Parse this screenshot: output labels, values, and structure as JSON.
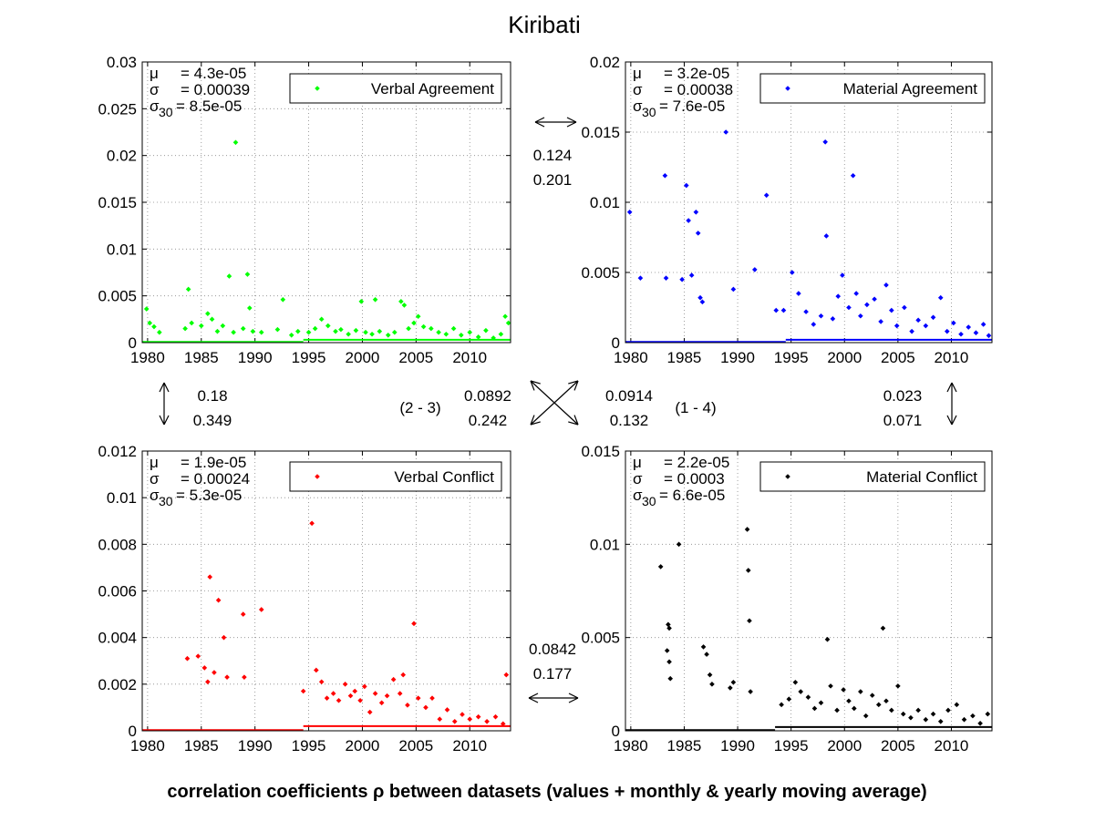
{
  "title": "Kiribati",
  "footer": "correlation coefficients ρ between datasets (values + monthly & yearly moving average)",
  "colors": {
    "verbal_agreement": "#00ff00",
    "material_agreement": "#0000ff",
    "verbal_conflict": "#ff0000",
    "material_conflict": "#000000"
  },
  "chart_data": [
    {
      "type": "scatter",
      "id": "va",
      "legend": "Verbal Agreement",
      "stats": {
        "mu": "= 4.3e-05",
        "sigma": "= 0.00039",
        "sigma30": "= 8.5e-05"
      },
      "xlim": [
        1979.5,
        2013.8
      ],
      "ylim": [
        0,
        0.03
      ],
      "xticks": [
        1980,
        1985,
        1990,
        1995,
        2000,
        2005,
        2010
      ],
      "yticks": [
        0,
        0.005,
        0.01,
        0.015,
        0.02,
        0.025,
        0.03
      ],
      "ytick_labels": [
        "0",
        "0.005",
        "0.01",
        "0.015",
        "0.02",
        "0.025",
        "0.03"
      ],
      "points": [
        [
          1979.9,
          0.0036
        ],
        [
          1980.2,
          0.0021
        ],
        [
          1980.6,
          0.0017
        ],
        [
          1981.1,
          0.0011
        ],
        [
          1983.8,
          0.0057
        ],
        [
          1983.5,
          0.0015
        ],
        [
          1984.1,
          0.0021
        ],
        [
          1985.0,
          0.0018
        ],
        [
          1985.6,
          0.0031
        ],
        [
          1986.0,
          0.0025
        ],
        [
          1986.5,
          0.0012
        ],
        [
          1987.0,
          0.0018
        ],
        [
          1987.6,
          0.0071
        ],
        [
          1988.2,
          0.0214
        ],
        [
          1988.0,
          0.0011
        ],
        [
          1988.9,
          0.0015
        ],
        [
          1989.3,
          0.0073
        ],
        [
          1989.5,
          0.0037
        ],
        [
          1989.8,
          0.0012
        ],
        [
          1990.6,
          0.0011
        ],
        [
          1992.6,
          0.0046
        ],
        [
          1992.1,
          0.0014
        ],
        [
          1993.4,
          0.0008
        ],
        [
          1994.0,
          0.0012
        ],
        [
          1995.0,
          0.0011
        ],
        [
          1995.6,
          0.0015
        ],
        [
          1996.2,
          0.0025
        ],
        [
          1996.8,
          0.0018
        ],
        [
          1997.5,
          0.0012
        ],
        [
          1998.0,
          0.0014
        ],
        [
          1998.7,
          0.0009
        ],
        [
          1999.4,
          0.0013
        ],
        [
          1999.9,
          0.0044
        ],
        [
          2000.3,
          0.0011
        ],
        [
          2000.9,
          0.0009
        ],
        [
          2001.2,
          0.0046
        ],
        [
          2001.6,
          0.0012
        ],
        [
          2002.4,
          0.0008
        ],
        [
          2003.0,
          0.0011
        ],
        [
          2003.6,
          0.0044
        ],
        [
          2003.9,
          0.004
        ],
        [
          2004.3,
          0.0015
        ],
        [
          2004.8,
          0.0021
        ],
        [
          2005.2,
          0.0028
        ],
        [
          2005.7,
          0.0017
        ],
        [
          2006.4,
          0.0015
        ],
        [
          2007.1,
          0.0011
        ],
        [
          2007.8,
          0.0009
        ],
        [
          2008.5,
          0.0015
        ],
        [
          2009.2,
          0.0008
        ],
        [
          2010.0,
          0.0011
        ],
        [
          2010.8,
          0.0006
        ],
        [
          2011.5,
          0.0013
        ],
        [
          2012.2,
          0.0005
        ],
        [
          2012.9,
          0.0009
        ],
        [
          2013.3,
          0.0028
        ],
        [
          2013.6,
          0.0021
        ]
      ],
      "baseline": 0.0003,
      "baseline_start": 1994.5
    },
    {
      "type": "scatter",
      "id": "ma",
      "legend": "Material Agreement",
      "stats": {
        "mu": "= 3.2e-05",
        "sigma": "= 0.00038",
        "sigma30": "= 7.6e-05"
      },
      "xlim": [
        1979.5,
        2013.8
      ],
      "ylim": [
        0,
        0.02
      ],
      "xticks": [
        1980,
        1985,
        1990,
        1995,
        2000,
        2005,
        2010
      ],
      "yticks": [
        0,
        0.005,
        0.01,
        0.015,
        0.02
      ],
      "ytick_labels": [
        "0",
        "0.005",
        "0.01",
        "0.015",
        "0.02"
      ],
      "points": [
        [
          1979.9,
          0.0093
        ],
        [
          1980.9,
          0.0046
        ],
        [
          1983.2,
          0.0119
        ],
        [
          1983.3,
          0.0046
        ],
        [
          1984.8,
          0.0045
        ],
        [
          1985.2,
          0.0112
        ],
        [
          1985.4,
          0.0087
        ],
        [
          1985.7,
          0.0048
        ],
        [
          1986.1,
          0.0093
        ],
        [
          1986.3,
          0.0078
        ],
        [
          1986.5,
          0.0032
        ],
        [
          1986.7,
          0.0029
        ],
        [
          1988.9,
          0.015
        ],
        [
          1989.6,
          0.0038
        ],
        [
          1991.6,
          0.0052
        ],
        [
          1992.7,
          0.0105
        ],
        [
          1993.6,
          0.0023
        ],
        [
          1994.3,
          0.0023
        ],
        [
          1995.1,
          0.005
        ],
        [
          1995.7,
          0.0035
        ],
        [
          1996.4,
          0.0022
        ],
        [
          1997.1,
          0.0013
        ],
        [
          1997.8,
          0.0019
        ],
        [
          1998.2,
          0.0143
        ],
        [
          1998.3,
          0.0076
        ],
        [
          1998.9,
          0.0017
        ],
        [
          1999.4,
          0.0033
        ],
        [
          1999.8,
          0.0048
        ],
        [
          2000.4,
          0.0025
        ],
        [
          2000.8,
          0.0119
        ],
        [
          2001.1,
          0.0035
        ],
        [
          2001.5,
          0.0019
        ],
        [
          2002.1,
          0.0027
        ],
        [
          2002.8,
          0.0031
        ],
        [
          2003.4,
          0.0015
        ],
        [
          2003.9,
          0.0041
        ],
        [
          2004.4,
          0.0023
        ],
        [
          2004.9,
          0.0012
        ],
        [
          2005.6,
          0.0025
        ],
        [
          2006.3,
          0.0008
        ],
        [
          2006.9,
          0.0016
        ],
        [
          2007.6,
          0.0012
        ],
        [
          2008.3,
          0.0018
        ],
        [
          2009.0,
          0.0032
        ],
        [
          2009.6,
          0.0008
        ],
        [
          2010.2,
          0.0014
        ],
        [
          2010.9,
          0.0006
        ],
        [
          2011.6,
          0.0011
        ],
        [
          2012.3,
          0.0007
        ],
        [
          2013.0,
          0.0013
        ],
        [
          2013.5,
          0.0005
        ]
      ],
      "baseline": 0.0002,
      "baseline_start": 1994.5
    },
    {
      "type": "scatter",
      "id": "vc",
      "legend": "Verbal Conflict",
      "stats": {
        "mu": "= 1.9e-05",
        "sigma": "= 0.00024",
        "sigma30": "= 5.3e-05"
      },
      "xlim": [
        1979.5,
        2013.8
      ],
      "ylim": [
        0,
        0.012
      ],
      "xticks": [
        1980,
        1985,
        1990,
        1995,
        2000,
        2005,
        2010
      ],
      "yticks": [
        0,
        0.002,
        0.004,
        0.006,
        0.008,
        0.01,
        0.012
      ],
      "ytick_labels": [
        "0",
        "0.002",
        "0.004",
        "0.006",
        "0.008",
        "0.01",
        "0.012"
      ],
      "points": [
        [
          1983.7,
          0.0031
        ],
        [
          1984.7,
          0.0032
        ],
        [
          1985.3,
          0.0027
        ],
        [
          1985.6,
          0.0021
        ],
        [
          1985.8,
          0.0066
        ],
        [
          1986.2,
          0.0025
        ],
        [
          1986.6,
          0.0056
        ],
        [
          1987.1,
          0.004
        ],
        [
          1987.4,
          0.0023
        ],
        [
          1988.9,
          0.005
        ],
        [
          1989.0,
          0.0023
        ],
        [
          1990.6,
          0.0052
        ],
        [
          1994.5,
          0.0017
        ],
        [
          1995.3,
          0.0089
        ],
        [
          1995.7,
          0.0026
        ],
        [
          1996.2,
          0.0021
        ],
        [
          1996.7,
          0.0014
        ],
        [
          1997.3,
          0.0016
        ],
        [
          1997.8,
          0.0013
        ],
        [
          1998.4,
          0.002
        ],
        [
          1998.9,
          0.0015
        ],
        [
          1999.3,
          0.0017
        ],
        [
          1999.8,
          0.0013
        ],
        [
          2000.2,
          0.0019
        ],
        [
          2000.7,
          0.0008
        ],
        [
          2001.2,
          0.0016
        ],
        [
          2001.8,
          0.0012
        ],
        [
          2002.3,
          0.0015
        ],
        [
          2002.9,
          0.0022
        ],
        [
          2003.5,
          0.0016
        ],
        [
          2003.8,
          0.0024
        ],
        [
          2004.2,
          0.0011
        ],
        [
          2004.8,
          0.0046
        ],
        [
          2005.2,
          0.0014
        ],
        [
          2005.9,
          0.001
        ],
        [
          2006.5,
          0.0014
        ],
        [
          2007.2,
          0.0005
        ],
        [
          2007.9,
          0.0009
        ],
        [
          2008.6,
          0.0004
        ],
        [
          2009.3,
          0.0007
        ],
        [
          2010.0,
          0.0005
        ],
        [
          2010.8,
          0.0006
        ],
        [
          2011.6,
          0.0004
        ],
        [
          2012.4,
          0.0006
        ],
        [
          2013.1,
          0.0003
        ],
        [
          2013.4,
          0.0024
        ]
      ],
      "baseline": 0.0002,
      "baseline_start": 1994.5
    },
    {
      "type": "scatter",
      "id": "mc",
      "legend": "Material Conflict",
      "stats": {
        "mu": "= 2.2e-05",
        "sigma": "= 0.0003",
        "sigma30": "= 6.6e-05"
      },
      "xlim": [
        1979.5,
        2013.8
      ],
      "ylim": [
        0,
        0.015
      ],
      "xticks": [
        1980,
        1985,
        1990,
        1995,
        2000,
        2005,
        2010
      ],
      "yticks": [
        0,
        0.005,
        0.01,
        0.015
      ],
      "ytick_labels": [
        "0",
        "0.005",
        "0.01",
        "0.015"
      ],
      "points": [
        [
          1982.8,
          0.0088
        ],
        [
          1983.5,
          0.0057
        ],
        [
          1983.6,
          0.0055
        ],
        [
          1983.4,
          0.0043
        ],
        [
          1983.6,
          0.0037
        ],
        [
          1983.7,
          0.0028
        ],
        [
          1984.5,
          0.01
        ],
        [
          1986.8,
          0.0045
        ],
        [
          1987.1,
          0.0041
        ],
        [
          1987.4,
          0.003
        ],
        [
          1987.6,
          0.0025
        ],
        [
          1989.3,
          0.0023
        ],
        [
          1989.6,
          0.0026
        ],
        [
          1990.9,
          0.0108
        ],
        [
          1991.0,
          0.0086
        ],
        [
          1991.1,
          0.0059
        ],
        [
          1991.2,
          0.0021
        ],
        [
          1994.1,
          0.0014
        ],
        [
          1994.8,
          0.0017
        ],
        [
          1995.4,
          0.0026
        ],
        [
          1995.9,
          0.0021
        ],
        [
          1996.6,
          0.0018
        ],
        [
          1997.2,
          0.0012
        ],
        [
          1997.8,
          0.0015
        ],
        [
          1998.4,
          0.0049
        ],
        [
          1998.7,
          0.0024
        ],
        [
          1999.3,
          0.0011
        ],
        [
          1999.9,
          0.0022
        ],
        [
          2000.4,
          0.0016
        ],
        [
          2000.9,
          0.0012
        ],
        [
          2001.5,
          0.0021
        ],
        [
          2002.0,
          0.0008
        ],
        [
          2002.6,
          0.0019
        ],
        [
          2003.2,
          0.0014
        ],
        [
          2003.6,
          0.0055
        ],
        [
          2003.9,
          0.0016
        ],
        [
          2004.4,
          0.0011
        ],
        [
          2005.0,
          0.0024
        ],
        [
          2005.5,
          0.0009
        ],
        [
          2006.2,
          0.0007
        ],
        [
          2006.9,
          0.0011
        ],
        [
          2007.6,
          0.0006
        ],
        [
          2008.3,
          0.0009
        ],
        [
          2009.0,
          0.0005
        ],
        [
          2009.7,
          0.0011
        ],
        [
          2010.5,
          0.0014
        ],
        [
          2011.2,
          0.0006
        ],
        [
          2012.0,
          0.0008
        ],
        [
          2012.7,
          0.0004
        ],
        [
          2013.4,
          0.0009
        ]
      ],
      "baseline": 0.0002,
      "baseline_start": 1993.5
    }
  ],
  "correlations": {
    "va_ma": {
      "values": [
        "0.124",
        "0.201"
      ]
    },
    "va_vc": {
      "values": [
        "0.18",
        "0.349"
      ]
    },
    "ma_mc": {
      "values": [
        "0.023",
        "0.071"
      ]
    },
    "vc_mc": {
      "values": [
        "0.0842",
        "0.177"
      ]
    },
    "diag_23": {
      "label": "(2 - 3)",
      "values": [
        "0.0892",
        "0.242"
      ]
    },
    "diag_14": {
      "label": "(1 - 4)",
      "values": [
        "0.0914",
        "0.132"
      ]
    }
  },
  "labels": {
    "mu": "μ",
    "sigma": "σ",
    "sigma_sub": "30"
  }
}
